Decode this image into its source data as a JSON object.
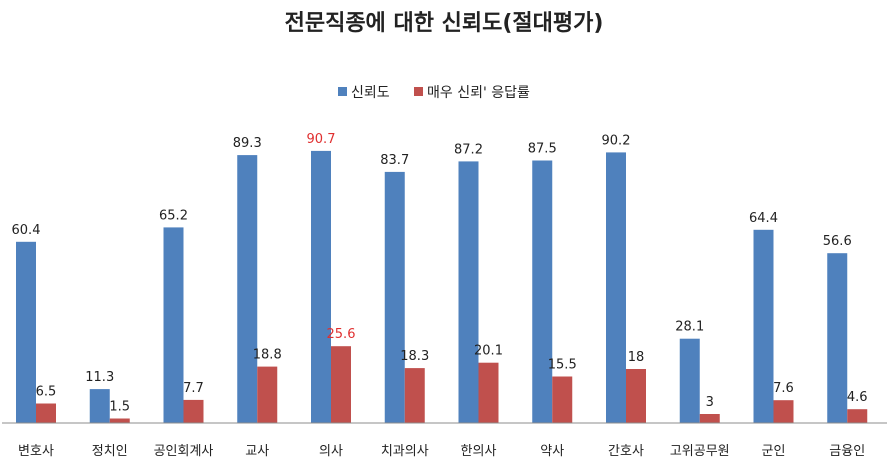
{
  "chart_data": {
    "type": "bar",
    "title": "전문직종에 대한 신뢰도(절대평가)",
    "legend_position": "top-center",
    "grid": false,
    "ylim": [
      0,
      100
    ],
    "categories": [
      "변호사",
      "정치인",
      "공인회계사",
      "교사",
      "의사",
      "치과의사",
      "한의사",
      "약사",
      "간호사",
      "고위공무원",
      "군인",
      "금융인"
    ],
    "series": [
      {
        "name": "신뢰도",
        "color": "#4f81bd",
        "values": [
          60.4,
          11.3,
          65.2,
          89.3,
          90.7,
          83.7,
          87.2,
          87.5,
          90.2,
          28.1,
          64.4,
          56.6
        ],
        "labels": [
          "60.4",
          "11.3",
          "65.2",
          "89.3",
          "90.7",
          "83.7",
          "87.2",
          "87.5",
          "90.2",
          "28.1",
          "64.4",
          "56.6"
        ]
      },
      {
        "name": "매우 신뢰' 응답률",
        "color": "#c0504d",
        "values": [
          6.5,
          1.5,
          7.7,
          18.8,
          25.6,
          18.3,
          20.1,
          15.5,
          18,
          3,
          7.6,
          4.6
        ],
        "labels": [
          "6.5",
          "1.5",
          "7.7",
          "18.8",
          "25.6",
          "18.3",
          "20.1",
          "15.5",
          "18",
          "3",
          "7.6",
          "4.6"
        ]
      }
    ],
    "highlight_category": "의사",
    "highlight_label_color": "#e03030",
    "label_color": "#222222",
    "axis_color": "#8c8c8c"
  }
}
